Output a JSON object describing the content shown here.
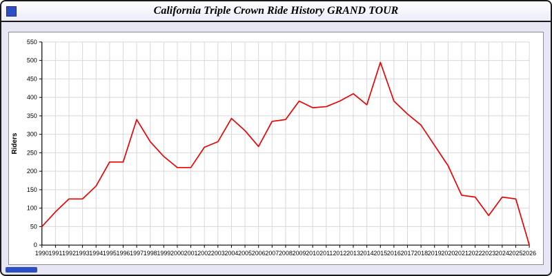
{
  "window": {
    "title": "California Triple Crown Ride History GRAND TOUR"
  },
  "colors": {
    "background": "#e6e6f4",
    "accent_blue": "#2e4fc4",
    "line_red": "#ee0000",
    "grid": "#d8d8d8"
  },
  "chart_data": {
    "type": "line",
    "title": "California Triple Crown Ride History GRAND TOUR",
    "xlabel": "",
    "ylabel": "Riders",
    "ylim": [
      0,
      550
    ],
    "y_tick_step": 50,
    "grid": true,
    "legend": "none",
    "line_color": "#ee0000",
    "years": [
      1990,
      1991,
      1992,
      1993,
      1994,
      1995,
      1996,
      1997,
      1998,
      1999,
      2000,
      2001,
      2002,
      2003,
      2004,
      2005,
      2006,
      2007,
      2008,
      2009,
      2010,
      2011,
      2012,
      2013,
      2014,
      2015,
      2016,
      2017,
      2018,
      2019,
      2020,
      2021,
      2022,
      2023,
      2024,
      2025,
      2026
    ],
    "values": [
      50,
      90,
      125,
      125,
      160,
      225,
      225,
      340,
      280,
      240,
      210,
      210,
      265,
      280,
      343,
      310,
      267,
      335,
      340,
      390,
      372,
      375,
      390,
      410,
      380,
      495,
      390,
      355,
      325,
      270,
      215,
      135,
      130,
      80,
      130,
      125,
      0
    ]
  }
}
